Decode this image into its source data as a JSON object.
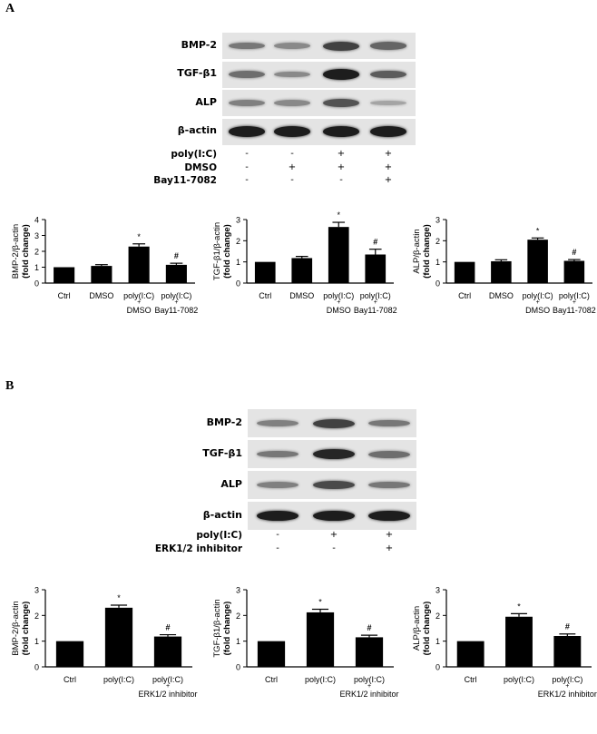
{
  "panel_a": {
    "letter": "A",
    "blot": {
      "rows": [
        {
          "label": "BMP-2",
          "intensity": [
            0.45,
            0.35,
            0.75,
            0.55
          ]
        },
        {
          "label": "TGF-β1",
          "intensity": [
            0.5,
            0.35,
            0.95,
            0.6
          ]
        },
        {
          "label": "ALP",
          "intensity": [
            0.4,
            0.35,
            0.65,
            0.2
          ]
        },
        {
          "label": "β-actin",
          "intensity": [
            0.95,
            0.95,
            0.95,
            0.95
          ]
        }
      ],
      "conditions": [
        {
          "label": "poly(I:C)",
          "signs": [
            "-",
            "-",
            "+",
            "+"
          ]
        },
        {
          "label": "DMSO",
          "signs": [
            "-",
            "+",
            "+",
            "+"
          ]
        },
        {
          "label": "Bay11-7082",
          "signs": [
            "-",
            "-",
            "-",
            "+"
          ]
        }
      ]
    }
  },
  "panel_b": {
    "letter": "B",
    "blot": {
      "rows": [
        {
          "label": "BMP-2",
          "intensity": [
            0.4,
            0.75,
            0.45
          ]
        },
        {
          "label": "TGF-β1",
          "intensity": [
            0.45,
            0.9,
            0.5
          ]
        },
        {
          "label": "ALP",
          "intensity": [
            0.4,
            0.7,
            0.45
          ]
        },
        {
          "label": "β-actin",
          "intensity": [
            0.95,
            0.95,
            0.95
          ]
        }
      ],
      "conditions": [
        {
          "label": "poly(I:C)",
          "signs": [
            "-",
            "+",
            "+"
          ]
        },
        {
          "label": "ERK1/2 inhibitor",
          "signs": [
            "-",
            "-",
            "+"
          ]
        }
      ]
    }
  },
  "chart_data": [
    {
      "type": "bar",
      "panel": "A",
      "ylabel": "BMP-2/β-actin (fold change)",
      "ylim": [
        0,
        4
      ],
      "yticks": [
        0,
        1,
        2,
        3,
        4
      ],
      "categories": [
        [
          "Ctrl"
        ],
        [
          "DMSO"
        ],
        [
          "poly(I:C)",
          "+",
          "DMSO"
        ],
        [
          "poly(I:C)",
          "+",
          "Bay11-7082"
        ]
      ],
      "values": [
        1.0,
        1.08,
        2.3,
        1.15
      ],
      "errors": [
        0,
        0.08,
        0.17,
        0.1
      ],
      "annotations": [
        "",
        "",
        "*",
        "#"
      ]
    },
    {
      "type": "bar",
      "panel": "A",
      "ylabel": "TGF-β1/β-actin (fold change)",
      "ylim": [
        0,
        3
      ],
      "yticks": [
        0,
        1,
        2,
        3
      ],
      "categories": [
        [
          "Ctrl"
        ],
        [
          "DMSO"
        ],
        [
          "poly(I:C)",
          "+",
          "DMSO"
        ],
        [
          "poly(I:C)",
          "+",
          "Bay11-7082"
        ]
      ],
      "values": [
        1.0,
        1.18,
        2.65,
        1.35
      ],
      "errors": [
        0,
        0.08,
        0.22,
        0.25
      ],
      "annotations": [
        "",
        "",
        "*",
        "#"
      ]
    },
    {
      "type": "bar",
      "panel": "A",
      "ylabel": "ALP/β-actin (fold change)",
      "ylim": [
        0,
        3
      ],
      "yticks": [
        0,
        1,
        2,
        3
      ],
      "categories": [
        [
          "Ctrl"
        ],
        [
          "DMSO"
        ],
        [
          "poly(I:C)",
          "+",
          "DMSO"
        ],
        [
          "poly(I:C)",
          "+",
          "Bay11-7082"
        ]
      ],
      "values": [
        1.0,
        1.03,
        2.05,
        1.05
      ],
      "errors": [
        0,
        0.07,
        0.08,
        0.06
      ],
      "annotations": [
        "",
        "",
        "*",
        "#"
      ]
    },
    {
      "type": "bar",
      "panel": "B",
      "ylabel": "BMP-2/β-actin (fold change)",
      "ylim": [
        0,
        3
      ],
      "yticks": [
        0,
        1,
        2,
        3
      ],
      "categories": [
        [
          "Ctrl"
        ],
        [
          "poly(I:C)"
        ],
        [
          "poly(I:C)",
          "+",
          "ERK1/2 inhibitor"
        ]
      ],
      "values": [
        1.0,
        2.3,
        1.18
      ],
      "errors": [
        0,
        0.1,
        0.07
      ],
      "annotations": [
        "",
        "*",
        "#"
      ]
    },
    {
      "type": "bar",
      "panel": "B",
      "ylabel": "TGF-β1/β-actin (fold change)",
      "ylim": [
        0,
        3
      ],
      "yticks": [
        0,
        1,
        2,
        3
      ],
      "categories": [
        [
          "Ctrl"
        ],
        [
          "poly(I:C)"
        ],
        [
          "poly(I:C)",
          "+",
          "ERK1/2 inhibitor"
        ]
      ],
      "values": [
        1.0,
        2.12,
        1.15
      ],
      "errors": [
        0,
        0.12,
        0.08
      ],
      "annotations": [
        "",
        "*",
        "#"
      ]
    },
    {
      "type": "bar",
      "panel": "B",
      "ylabel": "ALP/β-actin (fold change)",
      "ylim": [
        0,
        3
      ],
      "yticks": [
        0,
        1,
        2,
        3
      ],
      "categories": [
        [
          "Ctrl"
        ],
        [
          "poly(I:C)"
        ],
        [
          "poly(I:C)",
          "+",
          "ERK1/2 inhibitor"
        ]
      ],
      "values": [
        1.0,
        1.95,
        1.2
      ],
      "errors": [
        0,
        0.12,
        0.08
      ],
      "annotations": [
        "",
        "*",
        "#"
      ]
    }
  ]
}
